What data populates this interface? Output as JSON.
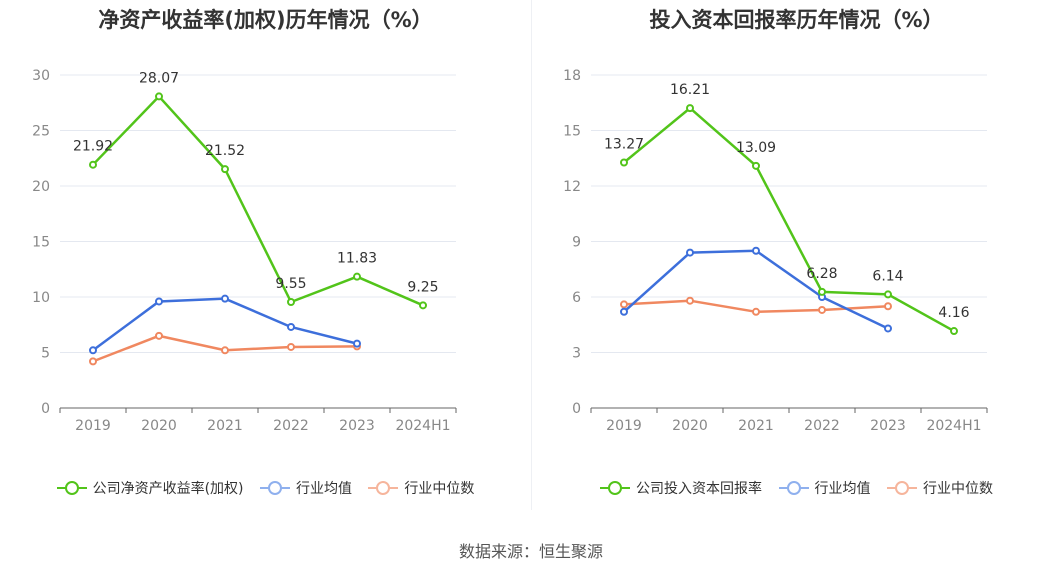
{
  "source": "数据来源：恒生聚源",
  "chart_data": [
    {
      "type": "line",
      "title": "净资产收益率(加权)历年情况（%）",
      "categories": [
        "2019",
        "2020",
        "2021",
        "2022",
        "2023",
        "2024H1"
      ],
      "ylim": [
        0,
        30
      ],
      "yticks": [
        "0",
        "5",
        "10",
        "15",
        "20",
        "25",
        "30"
      ],
      "ytick_values": [
        0,
        5,
        10,
        15,
        20,
        25,
        30
      ],
      "grid": true,
      "legend_position": "bottom",
      "series": [
        {
          "name": "公司净资产收益率(加权)",
          "color": "#52c41a",
          "values": [
            21.92,
            28.07,
            21.52,
            9.55,
            11.83,
            9.25
          ],
          "labels": [
            "21.92",
            "28.07",
            "21.52",
            "9.55",
            "11.83",
            "9.25"
          ]
        },
        {
          "name": "行业均值",
          "color": "#3d6fdb",
          "values": [
            5.2,
            9.6,
            9.85,
            7.3,
            5.8,
            null
          ]
        },
        {
          "name": "行业中位数",
          "color": "#f08860",
          "values": [
            4.2,
            6.5,
            5.2,
            5.5,
            5.55,
            null
          ]
        }
      ]
    },
    {
      "type": "line",
      "title": "投入资本回报率历年情况（%）",
      "categories": [
        "2019",
        "2020",
        "2021",
        "2022",
        "2023",
        "2024H1"
      ],
      "ylim": [
        0,
        18
      ],
      "yticks": [
        "0",
        "3",
        "6",
        "9",
        "12",
        "15",
        "18"
      ],
      "ytick_values": [
        0,
        3,
        6,
        9,
        12,
        15,
        18
      ],
      "grid": true,
      "legend_position": "bottom",
      "series": [
        {
          "name": "公司投入资本回报率",
          "color": "#52c41a",
          "values": [
            13.27,
            16.21,
            13.09,
            6.28,
            6.14,
            4.16
          ],
          "labels": [
            "13.27",
            "16.21",
            "13.09",
            "6.28",
            "6.14",
            "4.16"
          ]
        },
        {
          "name": "行业均值",
          "color": "#3d6fdb",
          "values": [
            5.2,
            8.4,
            8.5,
            6.0,
            4.3,
            null
          ]
        },
        {
          "name": "行业中位数",
          "color": "#f08860",
          "values": [
            5.6,
            5.8,
            5.2,
            5.3,
            5.5,
            null
          ]
        }
      ]
    }
  ]
}
